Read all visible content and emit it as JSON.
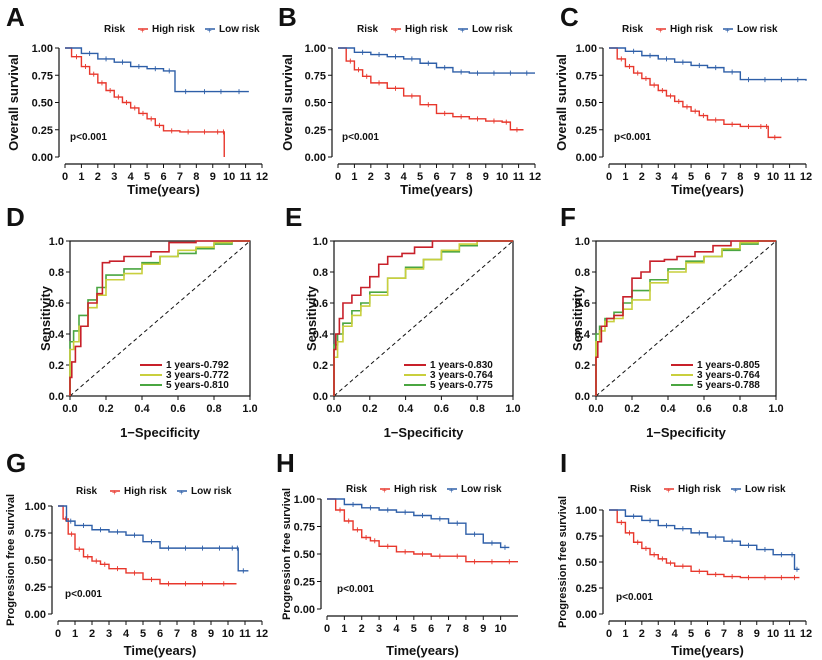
{
  "figure": {
    "colors": {
      "high": "#e8372c",
      "low": "#2e5fa8",
      "yr1": "#c8202a",
      "yr3": "#c9cf3d",
      "yr5": "#4aa641",
      "diag": "#111111"
    }
  },
  "chart_data": [
    {
      "id": "A",
      "type": "line",
      "letter": "A",
      "legend_title": "Risk",
      "legend_labels": [
        "High risk",
        "Low risk"
      ],
      "xlabel": "Time(years)",
      "ylabel": "Overall survival",
      "pvalue": "p<0.001",
      "xlim": [
        0,
        12
      ],
      "xticks": [
        "0",
        "1",
        "2",
        "3",
        "4",
        "5",
        "6",
        "7",
        "8",
        "9",
        "10",
        "11",
        "12"
      ],
      "yticks": [
        "0.00",
        "0.25",
        "0.50",
        "0.75",
        "1.00"
      ],
      "series": [
        {
          "name": "High risk",
          "x": [
            0,
            0.4,
            1,
            1.5,
            2,
            2.5,
            3,
            3.5,
            4,
            4.5,
            5,
            5.5,
            6,
            7,
            8,
            9,
            9.6,
            9.7
          ],
          "y": [
            1,
            0.92,
            0.83,
            0.76,
            0.68,
            0.61,
            0.55,
            0.5,
            0.45,
            0.4,
            0.35,
            0.29,
            0.24,
            0.23,
            0.23,
            0.23,
            0.23,
            0.0
          ]
        },
        {
          "name": "Low risk",
          "x": [
            0,
            1,
            2,
            3,
            4,
            5,
            6,
            6.7,
            8,
            9,
            10,
            11.2
          ],
          "y": [
            1,
            0.95,
            0.9,
            0.87,
            0.83,
            0.81,
            0.79,
            0.6,
            0.6,
            0.6,
            0.6,
            0.6
          ]
        }
      ]
    },
    {
      "id": "B",
      "type": "line",
      "letter": "B",
      "legend_title": "Risk",
      "legend_labels": [
        "High risk",
        "Low risk"
      ],
      "xlabel": "Time(years)",
      "ylabel": "Overall survival",
      "pvalue": "p<0.001",
      "xlim": [
        0,
        12
      ],
      "xticks": [
        "0",
        "1",
        "2",
        "3",
        "4",
        "5",
        "6",
        "7",
        "8",
        "9",
        "10",
        "11",
        "12"
      ],
      "yticks": [
        "0.00",
        "0.25",
        "0.50",
        "0.75",
        "1.00"
      ],
      "series": [
        {
          "name": "High risk",
          "x": [
            0,
            0.5,
            1,
            1.5,
            2,
            3,
            4,
            5,
            6,
            7,
            8,
            9,
            10,
            10.5,
            11.3
          ],
          "y": [
            1,
            0.88,
            0.8,
            0.74,
            0.68,
            0.63,
            0.56,
            0.48,
            0.4,
            0.37,
            0.35,
            0.33,
            0.32,
            0.25,
            0.25
          ]
        },
        {
          "name": "Low risk",
          "x": [
            0,
            1,
            2,
            3,
            4,
            5,
            6,
            7,
            8,
            9,
            10,
            11,
            12
          ],
          "y": [
            1,
            0.96,
            0.94,
            0.92,
            0.9,
            0.86,
            0.82,
            0.78,
            0.77,
            0.77,
            0.77,
            0.77,
            0.77
          ]
        }
      ]
    },
    {
      "id": "C",
      "type": "line",
      "letter": "C",
      "legend_title": "Risk",
      "legend_labels": [
        "High risk",
        "Low risk"
      ],
      "xlabel": "Time(years)",
      "ylabel": "Overall survival",
      "pvalue": "p<0.001",
      "xlim": [
        0,
        12
      ],
      "xticks": [
        "0",
        "1",
        "2",
        "3",
        "4",
        "5",
        "6",
        "7",
        "8",
        "9",
        "10",
        "11",
        "12"
      ],
      "yticks": [
        "0.00",
        "0.25",
        "0.50",
        "0.75",
        "1.00"
      ],
      "series": [
        {
          "name": "High risk",
          "x": [
            0,
            0.5,
            1,
            1.5,
            2,
            2.5,
            3,
            3.5,
            4,
            4.5,
            5,
            5.5,
            6,
            7,
            8,
            9,
            9.5,
            9.7,
            10.5
          ],
          "y": [
            1,
            0.9,
            0.83,
            0.77,
            0.72,
            0.66,
            0.61,
            0.56,
            0.51,
            0.46,
            0.42,
            0.38,
            0.34,
            0.3,
            0.28,
            0.28,
            0.28,
            0.18,
            0.18
          ]
        },
        {
          "name": "Low risk",
          "x": [
            0,
            1,
            2,
            3,
            4,
            5,
            6,
            7,
            8,
            9,
            10,
            11,
            12
          ],
          "y": [
            1,
            0.97,
            0.93,
            0.9,
            0.87,
            0.84,
            0.82,
            0.78,
            0.71,
            0.71,
            0.71,
            0.71,
            0.7
          ]
        }
      ]
    },
    {
      "id": "D",
      "type": "line",
      "letter": "D",
      "xlabel": "1−Specificity",
      "ylabel": "Sensitivity",
      "xticks": [
        "0.0",
        "0.2",
        "0.4",
        "0.6",
        "0.8",
        "1.0"
      ],
      "yticks": [
        "0.0",
        "0.2",
        "0.4",
        "0.6",
        "0.8",
        "1.0"
      ],
      "legend_labels": [
        "1 years-0.792",
        "3 years-0.772",
        "5 years-0.810"
      ],
      "series": [
        {
          "name": "1 years",
          "x": [
            0,
            0.01,
            0.03,
            0.06,
            0.1,
            0.15,
            0.18,
            0.22,
            0.3,
            0.35,
            0.45,
            0.55,
            0.7,
            0.85,
            1
          ],
          "y": [
            0,
            0.12,
            0.22,
            0.32,
            0.45,
            0.6,
            0.66,
            0.86,
            0.87,
            0.9,
            0.9,
            0.93,
            0.99,
            1,
            1
          ]
        },
        {
          "name": "3 years",
          "x": [
            0,
            0.02,
            0.05,
            0.1,
            0.15,
            0.2,
            0.3,
            0.4,
            0.5,
            0.6,
            0.7,
            0.8,
            0.9,
            1
          ],
          "y": [
            0,
            0.3,
            0.35,
            0.45,
            0.57,
            0.65,
            0.75,
            0.79,
            0.85,
            0.9,
            0.94,
            0.96,
            0.99,
            1
          ]
        },
        {
          "name": "5 years",
          "x": [
            0,
            0.02,
            0.05,
            0.1,
            0.15,
            0.2,
            0.3,
            0.4,
            0.5,
            0.6,
            0.7,
            0.8,
            0.9,
            1
          ],
          "y": [
            0,
            0.35,
            0.42,
            0.52,
            0.62,
            0.7,
            0.78,
            0.82,
            0.86,
            0.9,
            0.92,
            0.95,
            0.98,
            1
          ]
        }
      ]
    },
    {
      "id": "E",
      "type": "line",
      "letter": "E",
      "xlabel": "1−Specificity",
      "ylabel": "Sensitivity",
      "xticks": [
        "0.0",
        "0.2",
        "0.4",
        "0.6",
        "0.8",
        "1.0"
      ],
      "yticks": [
        "0.0",
        "0.2",
        "0.4",
        "0.6",
        "0.8",
        "1.0"
      ],
      "legend_labels": [
        "1 years-0.830",
        "3 years-0.764",
        "5 years-0.775"
      ],
      "series": [
        {
          "name": "1 years",
          "x": [
            0,
            0.01,
            0.03,
            0.05,
            0.1,
            0.15,
            0.2,
            0.25,
            0.3,
            0.38,
            0.45,
            0.55,
            0.65,
            0.8,
            1
          ],
          "y": [
            0,
            0.3,
            0.4,
            0.5,
            0.6,
            0.65,
            0.7,
            0.77,
            0.85,
            0.9,
            0.92,
            0.96,
            1,
            1,
            1
          ]
        },
        {
          "name": "3 years",
          "x": [
            0,
            0.02,
            0.05,
            0.1,
            0.15,
            0.2,
            0.3,
            0.4,
            0.5,
            0.6,
            0.7,
            0.8,
            0.9,
            1
          ],
          "y": [
            0,
            0.25,
            0.35,
            0.45,
            0.52,
            0.58,
            0.65,
            0.76,
            0.82,
            0.88,
            0.94,
            0.98,
            1,
            1
          ]
        },
        {
          "name": "5 years",
          "x": [
            0,
            0.02,
            0.05,
            0.1,
            0.15,
            0.2,
            0.3,
            0.4,
            0.5,
            0.6,
            0.7,
            0.8,
            0.9,
            1
          ],
          "y": [
            0,
            0.33,
            0.4,
            0.47,
            0.55,
            0.6,
            0.67,
            0.76,
            0.83,
            0.88,
            0.93,
            0.97,
            1,
            1
          ]
        }
      ]
    },
    {
      "id": "F",
      "type": "line",
      "letter": "F",
      "xlabel": "1−Specificity",
      "ylabel": "Sensitivity",
      "xticks": [
        "0.0",
        "0.2",
        "0.4",
        "0.6",
        "0.8",
        "1.0"
      ],
      "yticks": [
        "0.0",
        "0.2",
        "0.4",
        "0.6",
        "0.8",
        "1.0"
      ],
      "legend_labels": [
        "1 years-0.805",
        "3 years-0.764",
        "5 years-0.788"
      ],
      "series": [
        {
          "name": "1 years",
          "x": [
            0,
            0.01,
            0.03,
            0.06,
            0.1,
            0.15,
            0.2,
            0.25,
            0.3,
            0.38,
            0.45,
            0.55,
            0.65,
            0.75,
            0.85,
            1
          ],
          "y": [
            0,
            0.25,
            0.35,
            0.45,
            0.5,
            0.52,
            0.64,
            0.76,
            0.8,
            0.87,
            0.88,
            0.9,
            0.93,
            0.97,
            1,
            1
          ]
        },
        {
          "name": "3 years",
          "x": [
            0,
            0.02,
            0.05,
            0.1,
            0.15,
            0.2,
            0.3,
            0.4,
            0.5,
            0.6,
            0.7,
            0.8,
            0.9,
            1
          ],
          "y": [
            0,
            0.35,
            0.42,
            0.48,
            0.5,
            0.56,
            0.62,
            0.73,
            0.8,
            0.86,
            0.9,
            0.95,
            0.99,
            1
          ]
        },
        {
          "name": "5 years",
          "x": [
            0,
            0.02,
            0.05,
            0.1,
            0.15,
            0.2,
            0.3,
            0.4,
            0.5,
            0.6,
            0.7,
            0.8,
            0.9,
            1
          ],
          "y": [
            0,
            0.4,
            0.45,
            0.5,
            0.54,
            0.6,
            0.68,
            0.75,
            0.82,
            0.87,
            0.9,
            0.94,
            0.98,
            1
          ]
        }
      ]
    },
    {
      "id": "G",
      "type": "line",
      "letter": "G",
      "legend_title": "Risk",
      "legend_labels": [
        "High risk",
        "Low risk"
      ],
      "xlabel": "Time(years)",
      "ylabel": "Progression free survival",
      "pvalue": "p<0.001",
      "xlim": [
        0,
        12
      ],
      "xticks": [
        "0",
        "1",
        "2",
        "3",
        "4",
        "5",
        "6",
        "7",
        "8",
        "9",
        "10",
        "11",
        "12"
      ],
      "yticks": [
        "0.00",
        "0.25",
        "0.50",
        "0.75",
        "1.00"
      ],
      "series": [
        {
          "name": "High risk",
          "x": [
            0,
            0.3,
            0.6,
            1,
            1.5,
            2,
            2.5,
            3,
            4,
            5,
            6,
            7,
            8,
            9,
            10.5
          ],
          "y": [
            1,
            0.88,
            0.74,
            0.6,
            0.53,
            0.49,
            0.46,
            0.42,
            0.38,
            0.32,
            0.28,
            0.28,
            0.28,
            0.28,
            0.28
          ]
        },
        {
          "name": "Low risk",
          "x": [
            0,
            0.5,
            1,
            2,
            3,
            4,
            5,
            6,
            7,
            8,
            9,
            10,
            10.5,
            10.6,
            11.2
          ],
          "y": [
            1,
            0.86,
            0.82,
            0.78,
            0.76,
            0.73,
            0.67,
            0.61,
            0.61,
            0.61,
            0.61,
            0.61,
            0.61,
            0.4,
            0.4
          ]
        }
      ]
    },
    {
      "id": "H",
      "type": "line",
      "letter": "H",
      "legend_title": "Risk",
      "legend_labels": [
        "High risk",
        "Low risk"
      ],
      "xlabel": "Time(years)",
      "ylabel": "Progression free survival",
      "pvalue": "p<0.001",
      "xlim": [
        0,
        11
      ],
      "xticks": [
        "0",
        "1",
        "2",
        "3",
        "4",
        "5",
        "6",
        "7",
        "8",
        "9",
        "10"
      ],
      "yticks": [
        "0.00",
        "0.25",
        "0.50",
        "0.75",
        "1.00"
      ],
      "series": [
        {
          "name": "High risk",
          "x": [
            0,
            0.5,
            1,
            1.5,
            2,
            2.5,
            3,
            4,
            5,
            6,
            7,
            8,
            9,
            10,
            11
          ],
          "y": [
            1,
            0.9,
            0.8,
            0.72,
            0.65,
            0.62,
            0.57,
            0.52,
            0.5,
            0.48,
            0.48,
            0.43,
            0.43,
            0.43,
            0.43
          ]
        },
        {
          "name": "Low risk",
          "x": [
            0,
            1,
            2,
            3,
            4,
            5,
            6,
            7,
            8,
            9,
            10,
            10.5
          ],
          "y": [
            1,
            0.95,
            0.92,
            0.9,
            0.88,
            0.85,
            0.82,
            0.78,
            0.68,
            0.6,
            0.56,
            0.56
          ]
        }
      ]
    },
    {
      "id": "I",
      "type": "line",
      "letter": "I",
      "legend_title": "Risk",
      "legend_labels": [
        "High risk",
        "Low risk"
      ],
      "xlabel": "Time(years)",
      "ylabel": "Progression free survival",
      "pvalue": "p<0.001",
      "xlim": [
        0,
        12
      ],
      "xticks": [
        "0",
        "1",
        "2",
        "3",
        "4",
        "5",
        "6",
        "7",
        "8",
        "9",
        "10",
        "11",
        "12"
      ],
      "yticks": [
        "0.00",
        "0.25",
        "0.50",
        "0.75",
        "1.00"
      ],
      "series": [
        {
          "name": "High risk",
          "x": [
            0,
            0.5,
            1,
            1.5,
            2,
            2.5,
            3,
            3.5,
            4,
            5,
            6,
            7,
            8,
            9,
            10,
            11,
            11.6
          ],
          "y": [
            1,
            0.88,
            0.78,
            0.69,
            0.63,
            0.57,
            0.53,
            0.49,
            0.46,
            0.41,
            0.38,
            0.36,
            0.35,
            0.35,
            0.35,
            0.35,
            0.35
          ]
        },
        {
          "name": "Low risk",
          "x": [
            0,
            1,
            2,
            3,
            4,
            5,
            6,
            7,
            8,
            9,
            10,
            11,
            11.3,
            11.6
          ],
          "y": [
            1,
            0.94,
            0.9,
            0.85,
            0.82,
            0.78,
            0.74,
            0.7,
            0.66,
            0.62,
            0.57,
            0.57,
            0.43,
            0.43
          ]
        }
      ]
    }
  ]
}
